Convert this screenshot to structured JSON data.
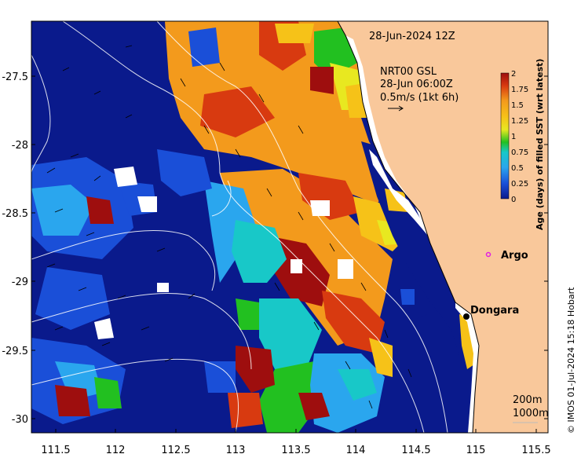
{
  "map": {
    "date_label": "28-Jun-2024 12Z",
    "current_label_lines": [
      "NRT00 GSL",
      "28-Jun 06:00Z",
      "0.5m/s (1kt 6h)"
    ],
    "x_ticks": [
      "111.5",
      "112",
      "112.5",
      "113",
      "113.5",
      "114",
      "114.5",
      "115",
      "115.5"
    ],
    "y_ticks": [
      "-27.5",
      "-28",
      "-28.5",
      "-29",
      "-29.5",
      "-30"
    ],
    "places": [
      {
        "name": "Argo",
        "marker": "argo-float-circle",
        "color": "#e020e0"
      },
      {
        "name": "Dongara",
        "marker": "town-dot",
        "color": "#000000"
      }
    ],
    "contours": [
      "200m",
      "1000m"
    ],
    "credit": "© IMOS 01-Jul-2024 15:18 Hobart",
    "colors": {
      "land": "#f9c89b",
      "ocean_old": "#0a1a8c",
      "missing": "#ffffff"
    }
  },
  "colorbar": {
    "title": "Age (days) of filled SST (wrt latest)",
    "ticks": [
      "2",
      "1.75",
      "1.5",
      "1.25",
      "1",
      "0.75",
      "0.5",
      "0.25",
      "0"
    ],
    "colors": [
      "#9e0e0e",
      "#d83a10",
      "#f39a1c",
      "#f6c218",
      "#e8e820",
      "#22c020",
      "#18c8c8",
      "#2aa6ee",
      "#1a4fd8",
      "#0a1a8c"
    ]
  }
}
